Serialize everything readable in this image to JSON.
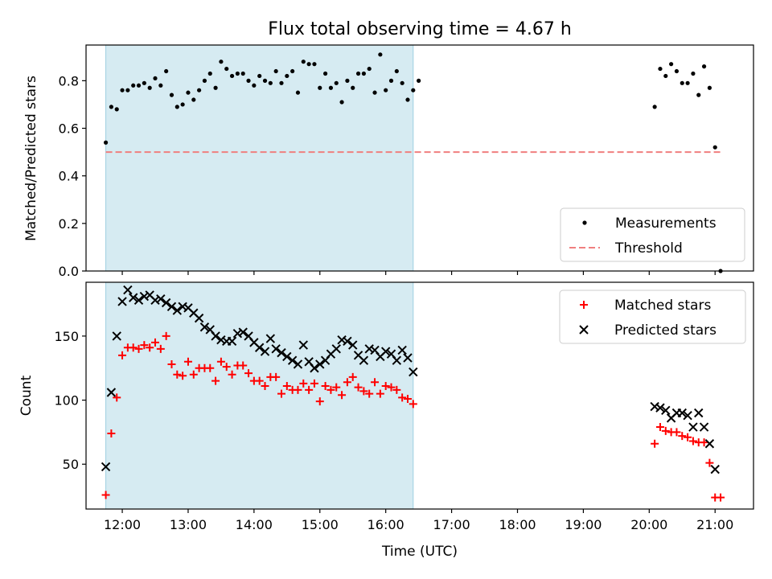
{
  "chart_data": [
    {
      "type": "scatter",
      "title": "Flux total observing time = 4.67 h",
      "xlabel": "",
      "ylabel": "Matched/Predicted stars",
      "xlim": [
        "11:27",
        "21:35"
      ],
      "ylim": [
        0,
        0.95
      ],
      "yticks": [
        0.0,
        0.2,
        0.4,
        0.6,
        0.8
      ],
      "ytick_labels": [
        "0.0",
        "0.2",
        "0.4",
        "0.6",
        "0.8"
      ],
      "shaded_span": [
        "11:45",
        "16:25"
      ],
      "threshold": {
        "value": 0.5,
        "x_range": [
          "11:45",
          "21:05"
        ],
        "color": "#f07f7f"
      },
      "legend": {
        "placement": "lower-right",
        "entries": [
          "Measurements",
          "Threshold"
        ]
      },
      "series": [
        {
          "name": "Measurements",
          "marker": "dot",
          "color": "#000000",
          "points": [
            [
              "11:45",
              0.54
            ],
            [
              "11:50",
              0.69
            ],
            [
              "11:55",
              0.68
            ],
            [
              "12:00",
              0.76
            ],
            [
              "12:05",
              0.76
            ],
            [
              "12:10",
              0.78
            ],
            [
              "12:15",
              0.78
            ],
            [
              "12:20",
              0.79
            ],
            [
              "12:25",
              0.77
            ],
            [
              "12:30",
              0.81
            ],
            [
              "12:35",
              0.78
            ],
            [
              "12:40",
              0.84
            ],
            [
              "12:45",
              0.74
            ],
            [
              "12:50",
              0.69
            ],
            [
              "12:55",
              0.7
            ],
            [
              "13:00",
              0.75
            ],
            [
              "13:05",
              0.72
            ],
            [
              "13:10",
              0.76
            ],
            [
              "13:15",
              0.8
            ],
            [
              "13:20",
              0.83
            ],
            [
              "13:25",
              0.77
            ],
            [
              "13:30",
              0.88
            ],
            [
              "13:35",
              0.85
            ],
            [
              "13:40",
              0.82
            ],
            [
              "13:45",
              0.83
            ],
            [
              "13:50",
              0.83
            ],
            [
              "13:55",
              0.8
            ],
            [
              "14:00",
              0.78
            ],
            [
              "14:05",
              0.82
            ],
            [
              "14:10",
              0.8
            ],
            [
              "14:15",
              0.79
            ],
            [
              "14:20",
              0.84
            ],
            [
              "14:25",
              0.79
            ],
            [
              "14:30",
              0.82
            ],
            [
              "14:35",
              0.84
            ],
            [
              "14:40",
              0.75
            ],
            [
              "14:45",
              0.88
            ],
            [
              "14:50",
              0.87
            ],
            [
              "14:55",
              0.87
            ],
            [
              "15:00",
              0.77
            ],
            [
              "15:05",
              0.83
            ],
            [
              "15:10",
              0.77
            ],
            [
              "15:15",
              0.79
            ],
            [
              "15:20",
              0.71
            ],
            [
              "15:25",
              0.8
            ],
            [
              "15:30",
              0.77
            ],
            [
              "15:35",
              0.83
            ],
            [
              "15:40",
              0.83
            ],
            [
              "15:45",
              0.85
            ],
            [
              "15:50",
              0.75
            ],
            [
              "15:55",
              0.91
            ],
            [
              "16:00",
              0.76
            ],
            [
              "16:05",
              0.8
            ],
            [
              "16:10",
              0.84
            ],
            [
              "16:15",
              0.79
            ],
            [
              "16:20",
              0.72
            ],
            [
              "16:25",
              0.76
            ],
            [
              "16:30",
              0.8
            ],
            [
              "20:05",
              0.69
            ],
            [
              "20:10",
              0.85
            ],
            [
              "20:15",
              0.82
            ],
            [
              "20:20",
              0.87
            ],
            [
              "20:25",
              0.84
            ],
            [
              "20:30",
              0.79
            ],
            [
              "20:35",
              0.79
            ],
            [
              "20:40",
              0.83
            ],
            [
              "20:45",
              0.74
            ],
            [
              "20:50",
              0.86
            ],
            [
              "20:55",
              0.77
            ],
            [
              "21:00",
              0.52
            ],
            [
              "21:05",
              0.0
            ]
          ]
        }
      ]
    },
    {
      "type": "scatter",
      "title": "",
      "xlabel": "Time (UTC)",
      "ylabel": "Count",
      "xlim": [
        "11:27",
        "21:35"
      ],
      "ylim": [
        15,
        192
      ],
      "yticks": [
        50,
        100,
        150
      ],
      "ytick_labels": [
        "50",
        "100",
        "150"
      ],
      "xticks": [
        "12:00",
        "13:00",
        "14:00",
        "15:00",
        "16:00",
        "17:00",
        "18:00",
        "19:00",
        "20:00",
        "21:00"
      ],
      "shaded_span": [
        "11:45",
        "16:25"
      ],
      "legend": {
        "placement": "upper-right",
        "entries": [
          "Matched stars",
          "Predicted stars"
        ]
      },
      "series": [
        {
          "name": "Matched stars",
          "marker": "plus",
          "color": "#ff0000",
          "points": [
            [
              "11:45",
              26
            ],
            [
              "11:50",
              74
            ],
            [
              "11:55",
              102
            ],
            [
              "12:00",
              135
            ],
            [
              "12:05",
              141
            ],
            [
              "12:10",
              141
            ],
            [
              "12:15",
              140
            ],
            [
              "12:20",
              143
            ],
            [
              "12:25",
              141
            ],
            [
              "12:30",
              145
            ],
            [
              "12:35",
              140
            ],
            [
              "12:40",
              150
            ],
            [
              "12:45",
              128
            ],
            [
              "12:50",
              120
            ],
            [
              "12:55",
              119
            ],
            [
              "13:00",
              130
            ],
            [
              "13:05",
              120
            ],
            [
              "13:10",
              125
            ],
            [
              "13:15",
              125
            ],
            [
              "13:20",
              125
            ],
            [
              "13:25",
              115
            ],
            [
              "13:30",
              130
            ],
            [
              "13:35",
              126
            ],
            [
              "13:40",
              120
            ],
            [
              "13:45",
              127
            ],
            [
              "13:50",
              127
            ],
            [
              "13:55",
              121
            ],
            [
              "14:00",
              115
            ],
            [
              "14:05",
              115
            ],
            [
              "14:10",
              111
            ],
            [
              "14:15",
              118
            ],
            [
              "14:20",
              118
            ],
            [
              "14:25",
              105
            ],
            [
              "14:30",
              111
            ],
            [
              "14:35",
              108
            ],
            [
              "14:40",
              108
            ],
            [
              "14:45",
              113
            ],
            [
              "14:50",
              108
            ],
            [
              "14:55",
              113
            ],
            [
              "15:00",
              99
            ],
            [
              "15:05",
              111
            ],
            [
              "15:10",
              108
            ],
            [
              "15:15",
              110
            ],
            [
              "15:20",
              104
            ],
            [
              "15:25",
              114
            ],
            [
              "15:30",
              118
            ],
            [
              "15:35",
              110
            ],
            [
              "15:40",
              107
            ],
            [
              "15:45",
              105
            ],
            [
              "15:50",
              114
            ],
            [
              "15:55",
              105
            ],
            [
              "16:00",
              111
            ],
            [
              "16:05",
              110
            ],
            [
              "16:10",
              108
            ],
            [
              "16:15",
              102
            ],
            [
              "16:20",
              101
            ],
            [
              "16:25",
              97
            ],
            [
              "20:05",
              66
            ],
            [
              "20:10",
              79
            ],
            [
              "20:15",
              76
            ],
            [
              "20:20",
              75
            ],
            [
              "20:25",
              75
            ],
            [
              "20:30",
              72
            ],
            [
              "20:35",
              71
            ],
            [
              "20:40",
              68
            ],
            [
              "20:45",
              67
            ],
            [
              "20:50",
              67
            ],
            [
              "20:55",
              51
            ],
            [
              "21:00",
              24
            ],
            [
              "21:05",
              24
            ]
          ]
        },
        {
          "name": "Predicted stars",
          "marker": "x",
          "color": "#000000",
          "points": [
            [
              "11:45",
              48
            ],
            [
              "11:50",
              106
            ],
            [
              "11:55",
              150
            ],
            [
              "12:00",
              177
            ],
            [
              "12:05",
              186
            ],
            [
              "12:10",
              180
            ],
            [
              "12:15",
              178
            ],
            [
              "12:20",
              181
            ],
            [
              "12:25",
              182
            ],
            [
              "12:30",
              178
            ],
            [
              "12:35",
              179
            ],
            [
              "12:40",
              176
            ],
            [
              "12:45",
              173
            ],
            [
              "12:50",
              170
            ],
            [
              "12:55",
              173
            ],
            [
              "13:00",
              172
            ],
            [
              "13:05",
              168
            ],
            [
              "13:10",
              164
            ],
            [
              "13:15",
              157
            ],
            [
              "13:20",
              155
            ],
            [
              "13:25",
              150
            ],
            [
              "13:30",
              147
            ],
            [
              "13:35",
              146
            ],
            [
              "13:40",
              146
            ],
            [
              "13:45",
              152
            ],
            [
              "13:50",
              153
            ],
            [
              "13:55",
              150
            ],
            [
              "14:00",
              145
            ],
            [
              "14:05",
              141
            ],
            [
              "14:10",
              138
            ],
            [
              "14:15",
              148
            ],
            [
              "14:20",
              140
            ],
            [
              "14:25",
              137
            ],
            [
              "14:30",
              134
            ],
            [
              "14:35",
              131
            ],
            [
              "14:40",
              128
            ],
            [
              "14:45",
              143
            ],
            [
              "14:50",
              130
            ],
            [
              "14:55",
              125
            ],
            [
              "15:00",
              128
            ],
            [
              "15:05",
              131
            ],
            [
              "15:10",
              136
            ],
            [
              "15:15",
              140
            ],
            [
              "15:20",
              147
            ],
            [
              "15:25",
              146
            ],
            [
              "15:30",
              143
            ],
            [
              "15:35",
              135
            ],
            [
              "15:40",
              131
            ],
            [
              "15:45",
              140
            ],
            [
              "15:50",
              139
            ],
            [
              "15:55",
              134
            ],
            [
              "16:00",
              138
            ],
            [
              "16:05",
              136
            ],
            [
              "16:10",
              131
            ],
            [
              "16:15",
              139
            ],
            [
              "16:20",
              133
            ],
            [
              "16:25",
              122
            ],
            [
              "20:05",
              95
            ],
            [
              "20:10",
              94
            ],
            [
              "20:15",
              92
            ],
            [
              "20:20",
              86
            ],
            [
              "20:25",
              90
            ],
            [
              "20:30",
              90
            ],
            [
              "20:35",
              88
            ],
            [
              "20:40",
              79
            ],
            [
              "20:45",
              90
            ],
            [
              "20:50",
              79
            ],
            [
              "20:55",
              66
            ],
            [
              "21:00",
              46
            ]
          ]
        }
      ]
    }
  ]
}
